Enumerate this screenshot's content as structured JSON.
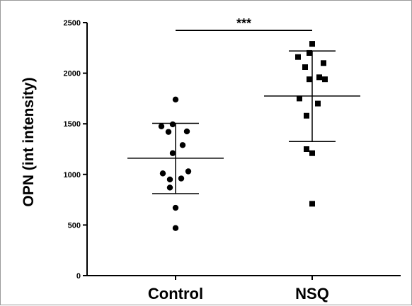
{
  "chart_data": {
    "type": "scatter",
    "ylabel": "OPN (int intensity)",
    "xlabel": "",
    "ylim": [
      0,
      2500
    ],
    "yticks": [
      0,
      500,
      1000,
      1500,
      2000,
      2500
    ],
    "categories": [
      "Control",
      "NSQ"
    ],
    "groups": [
      {
        "name": "Control",
        "marker": "circle",
        "mean": 1160,
        "sd_upper": 1505,
        "sd_lower": 810,
        "values": [
          1740,
          1495,
          1475,
          1425,
          1420,
          1290,
          1210,
          1030,
          1010,
          960,
          950,
          870,
          670,
          470
        ]
      },
      {
        "name": "NSQ",
        "marker": "square",
        "mean": 1775,
        "sd_upper": 2220,
        "sd_lower": 1325,
        "values": [
          2290,
          2200,
          2160,
          2100,
          2060,
          1960,
          1940,
          1940,
          1750,
          1700,
          1580,
          1250,
          1210,
          710
        ]
      }
    ],
    "significance": {
      "label": "***",
      "from": "Control",
      "to": "NSQ"
    },
    "grid": false,
    "color": "#000000"
  }
}
